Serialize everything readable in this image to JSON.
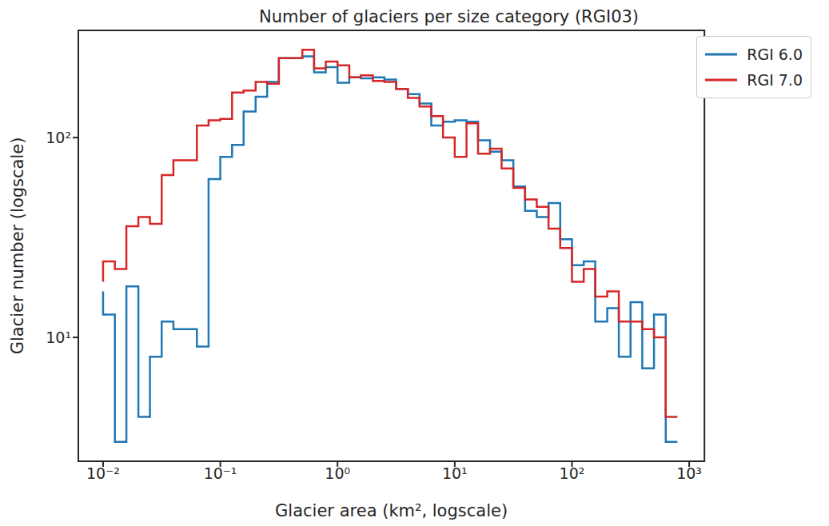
{
  "chart_data": {
    "type": "step",
    "title": "Number of glaciers per size category (RGI03)",
    "x_label": "Glacier area (km², logscale)",
    "y_label": "Glacier number (logscale)",
    "log": true,
    "grid": false,
    "legend": "upper right",
    "x": [
      0.01,
      0.0126,
      0.0158,
      0.02,
      0.0251,
      0.0316,
      0.0398,
      0.0501,
      0.0631,
      0.0794,
      0.1,
      0.126,
      0.158,
      0.2,
      0.251,
      0.316,
      0.398,
      0.501,
      0.631,
      0.794,
      1,
      1.26,
      1.58,
      2,
      2.51,
      3.16,
      3.98,
      5.01,
      6.31,
      7.94,
      10,
      12.6,
      15.8,
      20,
      25.1,
      31.6,
      39.8,
      50.1,
      63.1,
      79.4,
      100,
      126,
      158,
      200,
      251,
      316,
      398,
      501,
      631,
      794
    ],
    "series": [
      {
        "name": "RGI 6.0",
        "color": "#1f77b4",
        "values": [
          17,
          13,
          3,
          18,
          4,
          8,
          12,
          11,
          11,
          9,
          62,
          80,
          92,
          135,
          160,
          190,
          250,
          250,
          255,
          212,
          225,
          188,
          200,
          198,
          200,
          195,
          175,
          165,
          148,
          115,
          120,
          122,
          120,
          97,
          85,
          77,
          57,
          43,
          40,
          47,
          31,
          23,
          24,
          12,
          14,
          8,
          15,
          7,
          13,
          3
        ]
      },
      {
        "name": "RGI 7.0",
        "color": "#d62728",
        "values": [
          19,
          24,
          22,
          36,
          40,
          37,
          65,
          77,
          77,
          115,
          122,
          124,
          168,
          172,
          190,
          186,
          250,
          250,
          275,
          222,
          240,
          230,
          200,
          205,
          192,
          190,
          175,
          158,
          143,
          128,
          100,
          80,
          118,
          83,
          88,
          70,
          56,
          49,
          45,
          35,
          28,
          19,
          22,
          16,
          17,
          12,
          12,
          11,
          10,
          4
        ]
      }
    ],
    "xlim": [
      0.00615,
      1350
    ],
    "ylim": [
      2.4,
      344
    ],
    "xticks": [
      {
        "value": 0.01,
        "label": "10⁻²"
      },
      {
        "value": 0.1,
        "label": "10⁻¹"
      },
      {
        "value": 1,
        "label": "10⁰"
      },
      {
        "value": 10,
        "label": "10¹"
      },
      {
        "value": 100,
        "label": "10²"
      },
      {
        "value": 1000,
        "label": "10³"
      }
    ],
    "yticks": [
      {
        "value": 10,
        "label": "10¹"
      },
      {
        "value": 100,
        "label": "10²"
      }
    ]
  }
}
